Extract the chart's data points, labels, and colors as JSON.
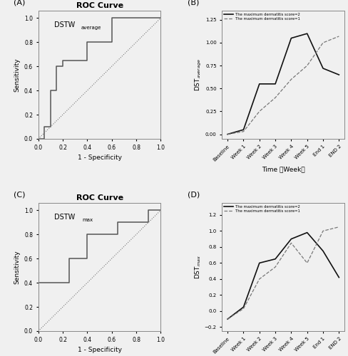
{
  "roc_A_fpr": [
    0.0,
    0.05,
    0.05,
    0.1,
    0.1,
    0.15,
    0.15,
    0.2,
    0.2,
    0.4,
    0.4,
    0.6,
    0.6,
    1.0,
    1.0
  ],
  "roc_A_tpr": [
    0.0,
    0.0,
    0.1,
    0.1,
    0.4,
    0.4,
    0.6,
    0.6,
    0.65,
    0.65,
    0.8,
    0.8,
    1.0,
    1.0,
    1.0
  ],
  "roc_C_fpr": [
    0.0,
    0.0,
    0.25,
    0.25,
    0.4,
    0.4,
    0.65,
    0.65,
    0.9,
    0.9,
    1.0,
    1.0
  ],
  "roc_C_tpr": [
    0.0,
    0.4,
    0.4,
    0.6,
    0.6,
    0.8,
    0.8,
    0.9,
    0.9,
    1.0,
    1.0,
    1.0
  ],
  "time_labels": [
    "Baseline",
    "Week 1",
    "Week 2",
    "Week 3",
    "Week 4",
    "Week 5",
    "End 1",
    "END 2"
  ],
  "B_grade2": [
    0.0,
    0.05,
    0.55,
    0.55,
    1.05,
    1.1,
    0.72,
    0.65
  ],
  "B_grade1": [
    0.0,
    0.03,
    0.25,
    0.4,
    0.6,
    0.75,
    1.0,
    1.07
  ],
  "D_grade2": [
    -0.1,
    0.05,
    0.6,
    0.65,
    0.9,
    0.98,
    0.75,
    0.42
  ],
  "D_grade1": [
    -0.1,
    0.03,
    0.4,
    0.55,
    0.85,
    0.6,
    1.0,
    1.05
  ],
  "roc_color": "#555555",
  "diag_color": "#777777",
  "grade2_color": "#111111",
  "grade1_color": "#777777",
  "bg_color": "#f0f0f0",
  "title_A": "ROC Curve",
  "title_C": "ROC Curve",
  "xlabel_roc": "1 - Specificity",
  "ylabel_roc": "Sensitivity",
  "xlabel_line": "Time （Week）",
  "legend_grade2": "The maximum dermatitis score=2",
  "legend_grade1": "The maximum dermatitis score=1"
}
